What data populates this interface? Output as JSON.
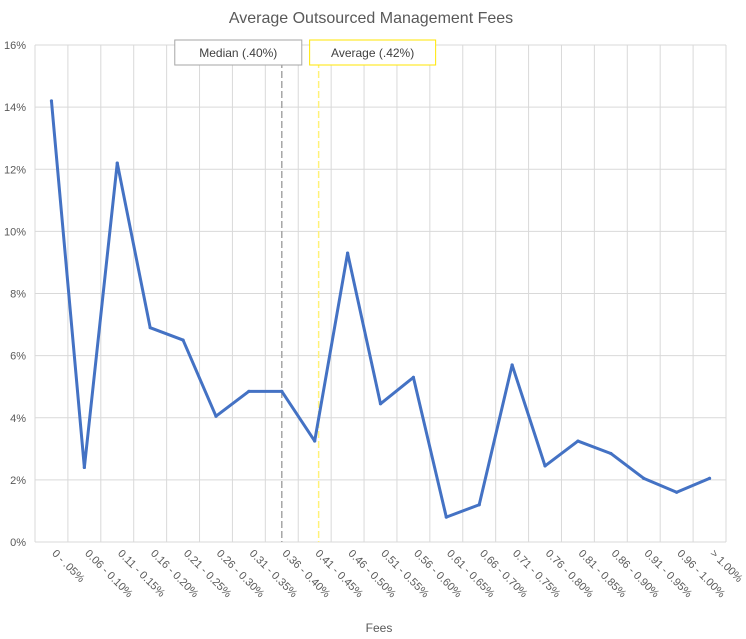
{
  "chart_data": {
    "type": "line",
    "title": "Average Outsourced Management Fees",
    "xlabel": "Fees",
    "ylabel": "",
    "categories": [
      "0 - .05%",
      "0.06 - 0.10%",
      "0.11 - 0.15%",
      "0.16 - 0.20%",
      "0.21 - 0.25%",
      "0.26 - 0.30%",
      "0.31 - 0.35%",
      "0.36 - 0.40%",
      "0.41 - 0.45%",
      "0.46 - 0.50%",
      "0.51 - 0.55%",
      "0.56 - 0.60%",
      "0.61 - 0.65%",
      "0.66 - 0.70%",
      "0.71 - 0.75%",
      "0.76 - 0.80%",
      "0.81 - 0.85%",
      "0.86 - 0.90%",
      "0.91 - 0.95%",
      "0.96 - 1.00%",
      "> 1.00%"
    ],
    "series": [
      {
        "values": [
          14.2,
          2.4,
          12.2,
          6.9,
          6.5,
          4.05,
          4.85,
          4.85,
          3.25,
          9.3,
          4.45,
          5.3,
          0.8,
          1.2,
          5.7,
          2.45,
          3.25,
          2.85,
          2.05,
          1.6,
          2.05
        ],
        "color": "#4472C4"
      }
    ],
    "ylim": [
      0,
      16
    ],
    "yticks": [
      0,
      2,
      4,
      6,
      8,
      10,
      12,
      14,
      16
    ],
    "ytick_labels": [
      "0%",
      "2%",
      "4%",
      "6%",
      "8%",
      "10%",
      "12%",
      "14%",
      "16%"
    ],
    "grid": true,
    "annotations": [
      {
        "label": "Median (.40%)",
        "position": 7.5,
        "line_color": "#A6A6A6",
        "box_border": "#A6A6A6"
      },
      {
        "label": "Average (.42%)",
        "position": 8.62,
        "line_color": "#FFF17A",
        "box_border": "#FFE600"
      }
    ],
    "colors": {
      "line": "#4472C4",
      "grid": "#D9D9D9",
      "text": "#595959"
    }
  }
}
